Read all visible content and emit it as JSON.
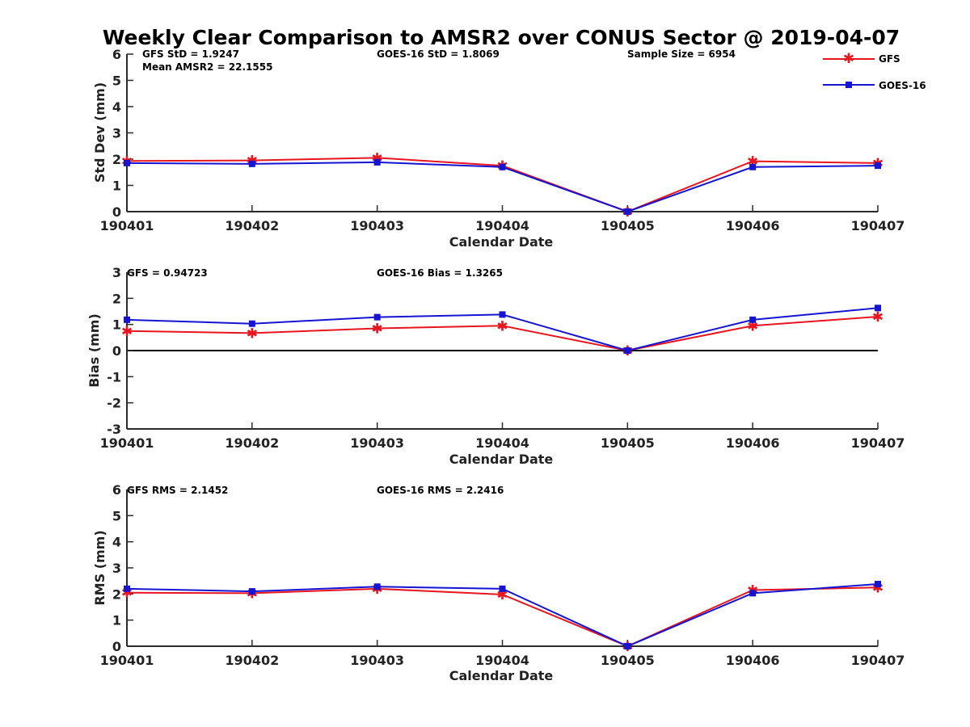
{
  "title": "Weekly Clear Comparison to AMSR2 over CONUS Sector @ 2019-04-07",
  "legend": {
    "position": "top-right",
    "entries": [
      "GFS",
      "GOES-16"
    ]
  },
  "colors": {
    "GFS": "#e8141e",
    "GOES-16": "#1414d2",
    "axis": "#2b2b2b",
    "zero_line": "#000000"
  },
  "chart_data": [
    {
      "type": "line",
      "x": [
        "190401",
        "190402",
        "190403",
        "190404",
        "190405",
        "190406",
        "190407"
      ],
      "xlabel": "Calendar Date",
      "ylabel": "Std Dev (mm)",
      "ylim": [
        0,
        6
      ],
      "yticks": [
        "0",
        "1",
        "2",
        "3",
        "4",
        "5",
        "6"
      ],
      "grid": false,
      "annotations": [
        "GFS StD = 1.9247",
        "Mean AMSR2 = 22.1555",
        "GOES-16 StD = 1.8069",
        "Sample Size = 6954"
      ],
      "series": [
        {
          "name": "GFS",
          "values": [
            1.93,
            1.95,
            2.05,
            1.75,
            0.0,
            1.92,
            1.85
          ]
        },
        {
          "name": "GOES-16",
          "values": [
            1.85,
            1.82,
            1.88,
            1.7,
            0.0,
            1.7,
            1.75
          ]
        }
      ]
    },
    {
      "type": "line",
      "x": [
        "190401",
        "190402",
        "190403",
        "190404",
        "190405",
        "190406",
        "190407"
      ],
      "xlabel": "Calendar Date",
      "ylabel": "Bias (mm)",
      "ylim": [
        -3,
        3
      ],
      "yticks": [
        "-3",
        "-2",
        "-1",
        "0",
        "1",
        "2",
        "3"
      ],
      "grid": false,
      "zero_line": true,
      "annotations": [
        "GFS = 0.94723",
        "GOES-16 Bias  = 1.3265"
      ],
      "series": [
        {
          "name": "GFS",
          "values": [
            0.75,
            0.67,
            0.85,
            0.95,
            0.0,
            0.95,
            1.3
          ]
        },
        {
          "name": "GOES-16",
          "values": [
            1.18,
            1.03,
            1.28,
            1.38,
            0.0,
            1.18,
            1.63
          ]
        }
      ]
    },
    {
      "type": "line",
      "x": [
        "190401",
        "190402",
        "190403",
        "190404",
        "190405",
        "190406",
        "190407"
      ],
      "xlabel": "Calendar Date",
      "ylabel": "RMS (mm)",
      "ylim": [
        0,
        6
      ],
      "yticks": [
        "0",
        "1",
        "2",
        "3",
        "4",
        "5",
        "6"
      ],
      "grid": false,
      "annotations": [
        "GFS RMS = 2.1452",
        "GOES-16 RMS = 2.2416"
      ],
      "series": [
        {
          "name": "GFS",
          "values": [
            2.05,
            2.03,
            2.2,
            1.98,
            0.0,
            2.15,
            2.25
          ]
        },
        {
          "name": "GOES-16",
          "values": [
            2.2,
            2.1,
            2.28,
            2.2,
            0.0,
            2.03,
            2.38
          ]
        }
      ]
    }
  ]
}
